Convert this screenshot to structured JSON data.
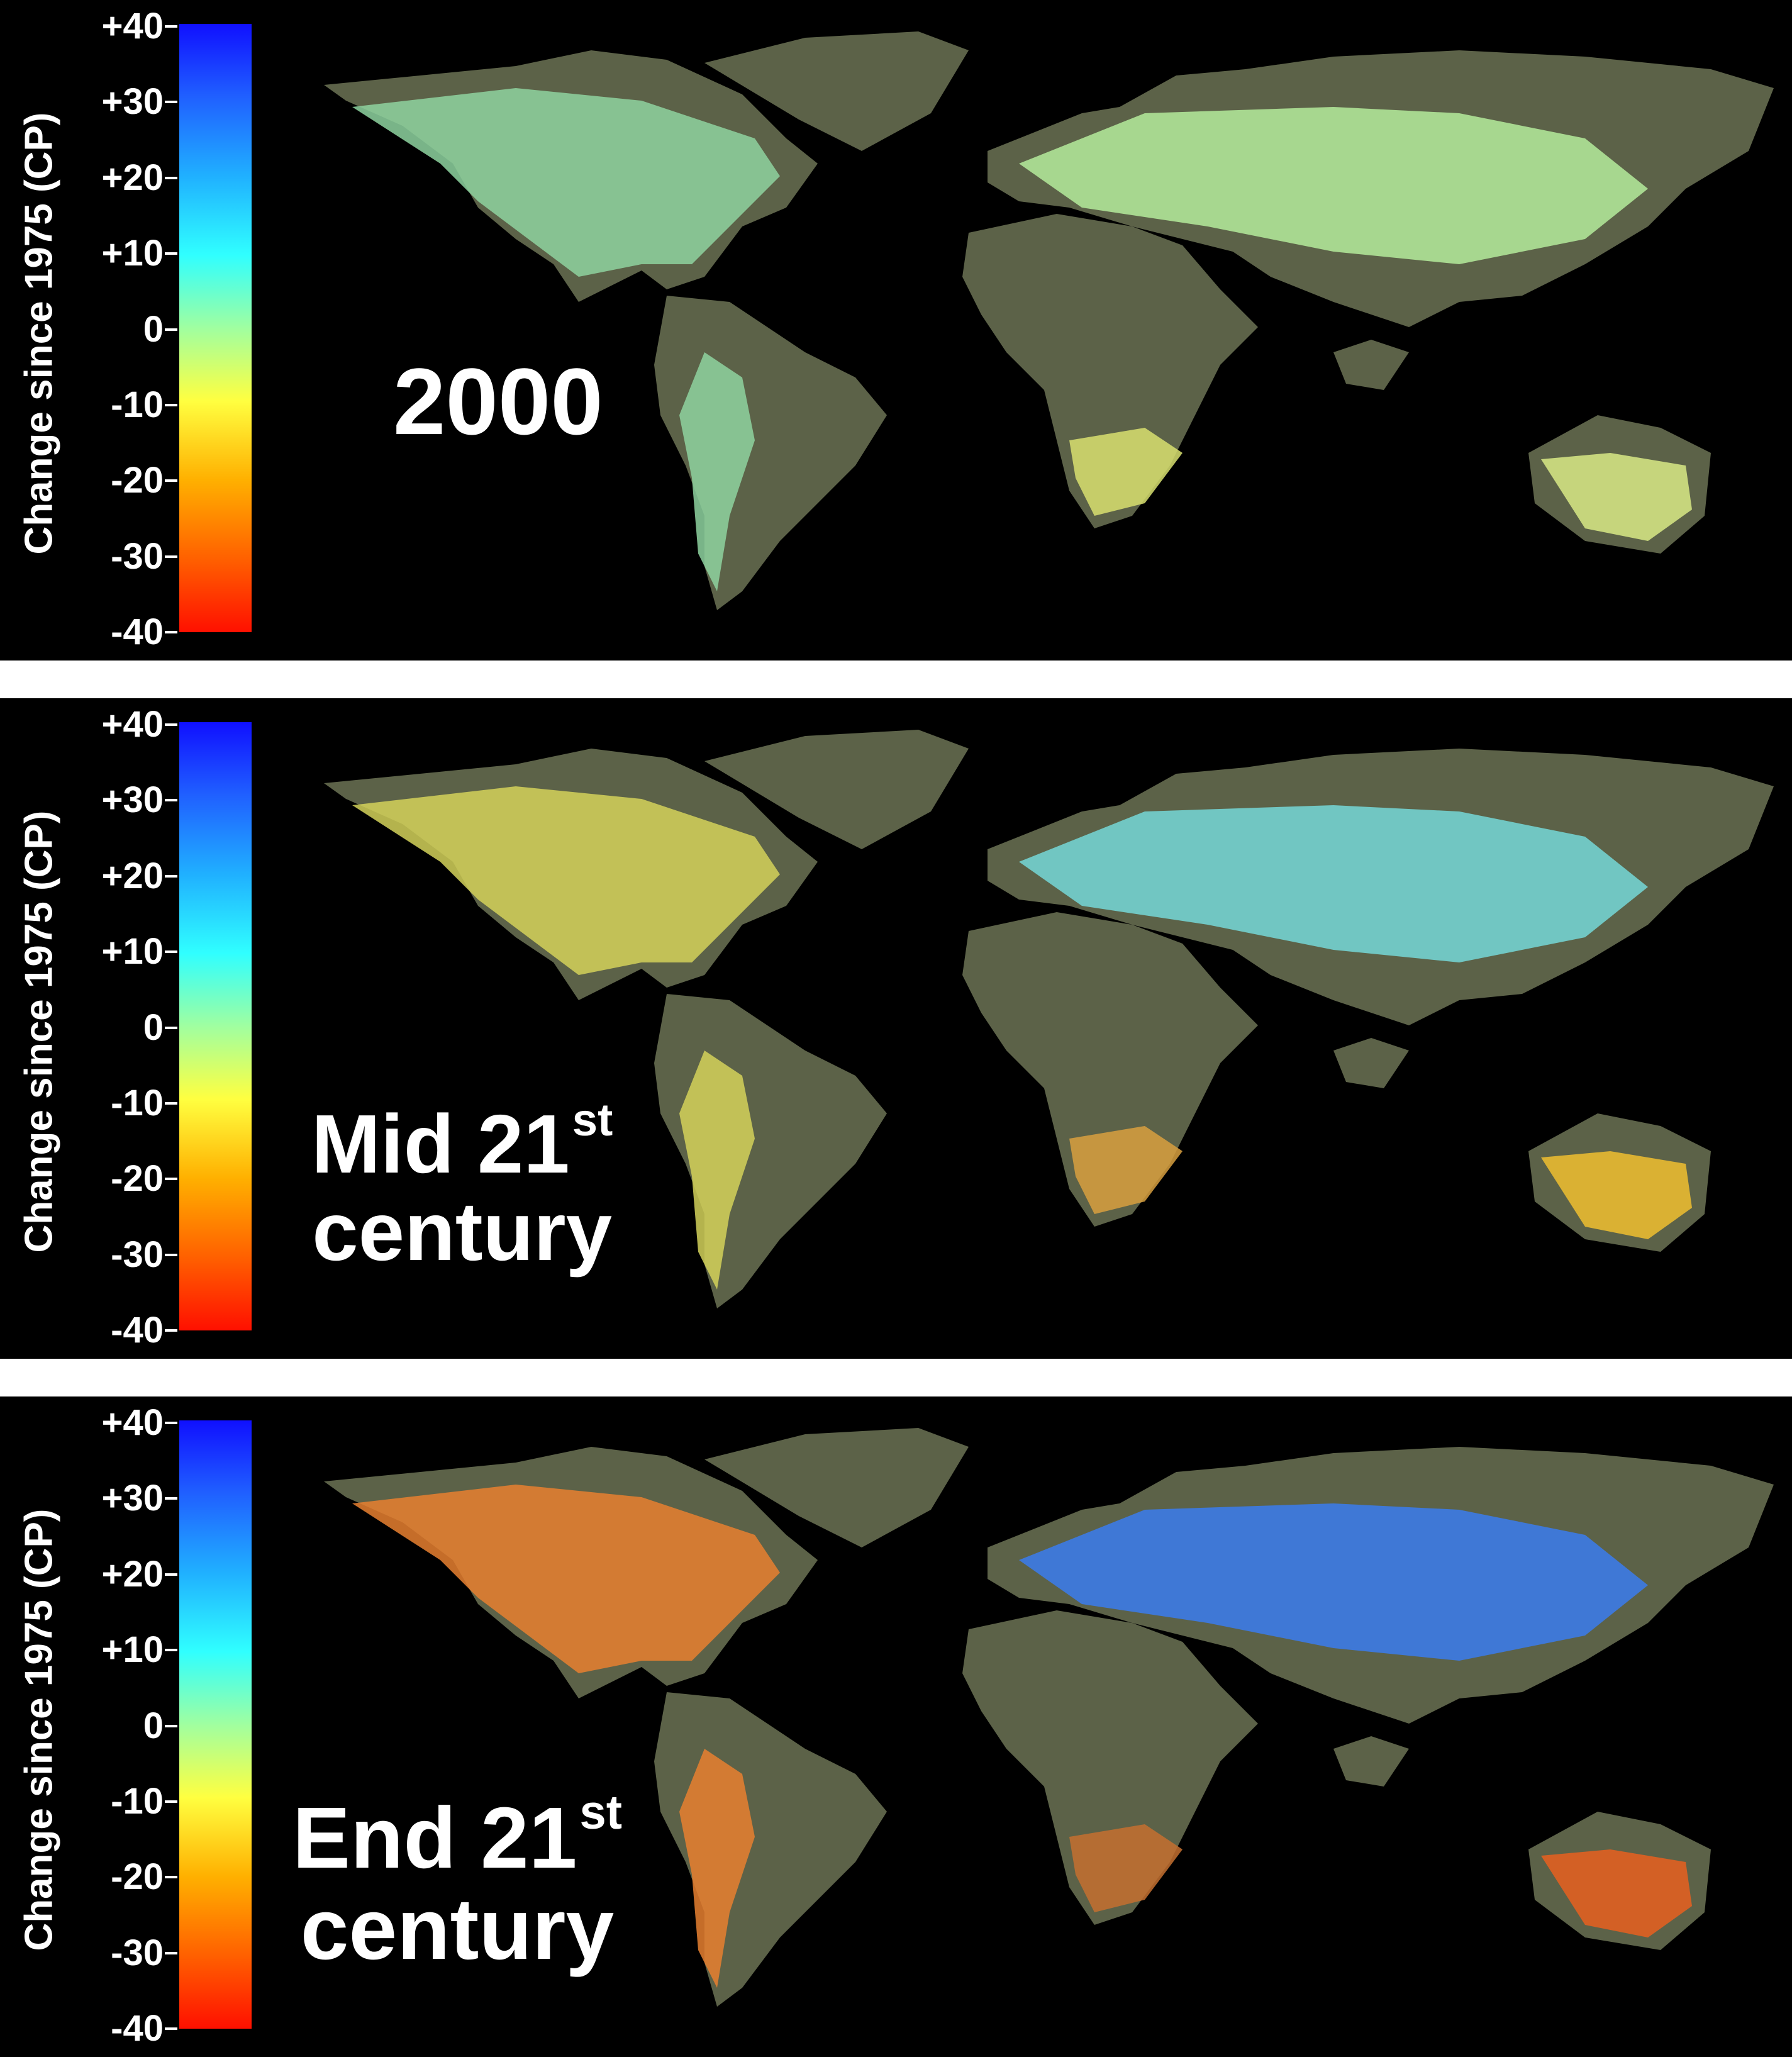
{
  "colorbar": {
    "title": "Change since 1975 (CP)",
    "ticks": [
      "+40",
      "+30",
      "+20",
      "+10",
      "0",
      "-10",
      "-20",
      "-30",
      "-40"
    ],
    "colors": [
      "#1010ff",
      "#2060ff",
      "#20b0ff",
      "#30ffff",
      "#a0ffa0",
      "#ffff40",
      "#ffb000",
      "#ff6000",
      "#ff1000"
    ]
  },
  "panels": [
    {
      "label_main": "2000",
      "label_sup": "",
      "label_line2": "",
      "fill": {
        "americas": "#8ed4a0",
        "eurasia": "#b4ec9c",
        "africa_south": "#d8e070",
        "australia": "#d8ea86"
      }
    },
    {
      "label_main": "Mid 21",
      "label_sup": "st",
      "label_line2": "century",
      "fill": {
        "americas": "#d4d25a",
        "eurasia": "#74d8d8",
        "africa_south": "#d8a040",
        "australia": "#f0c030"
      }
    },
    {
      "label_main": "End 21",
      "label_sup": "st",
      "label_line2": "century",
      "fill": {
        "americas": "#e88030",
        "eurasia": "#3a7cf0",
        "africa_south": "#c47030",
        "australia": "#e86020"
      }
    }
  ],
  "land_color": "#5c6248",
  "ocean_color": "#000000",
  "separator_color": "#ffffff"
}
